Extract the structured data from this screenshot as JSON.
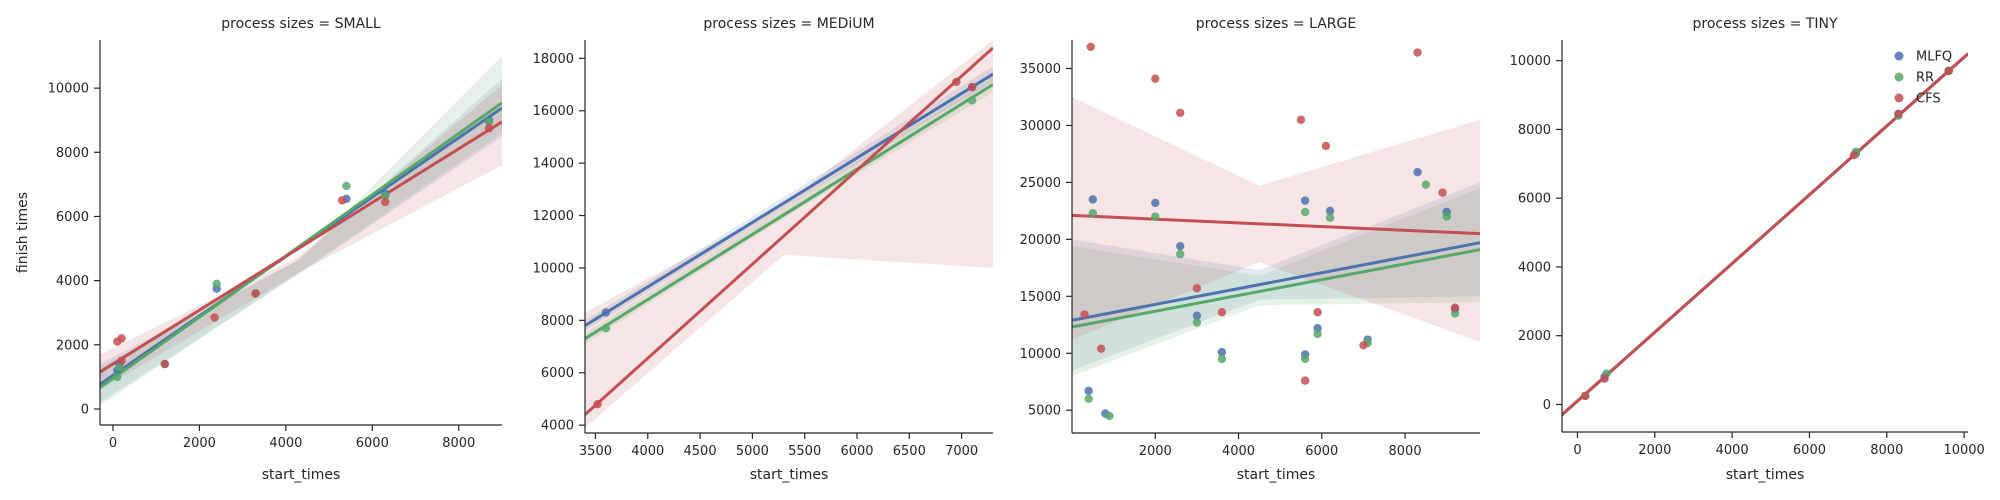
{
  "chart_data": [
    {
      "type": "scatter",
      "title": "process sizes = SMALL",
      "xlabel": "start_times",
      "ylabel": "finish times",
      "xlim": [
        -300,
        9000
      ],
      "ylim": [
        -500,
        11500
      ],
      "xticks": [
        0,
        2000,
        4000,
        6000,
        8000
      ],
      "yticks": [
        0,
        2000,
        4000,
        6000,
        8000,
        10000
      ],
      "regression": true,
      "series": [
        {
          "name": "MLFQ",
          "color": "#4c72b0",
          "points": [
            [
              100,
              1200
            ],
            [
              150,
              1400
            ],
            [
              1200,
              1400
            ],
            [
              2400,
              3750
            ],
            [
              3300,
              3600
            ],
            [
              5400,
              6550
            ],
            [
              6300,
              6700
            ],
            [
              8700,
              9000
            ]
          ],
          "fit": [
            [
              -300,
              770
            ],
            [
              9000,
              9380
            ]
          ],
          "ci": [
            [
              -300,
              200,
              1400
            ],
            [
              4300,
              4200,
              4650
            ],
            [
              9000,
              8500,
              10300
            ]
          ]
        },
        {
          "name": "RR",
          "color": "#55a868",
          "points": [
            [
              100,
              1000
            ],
            [
              150,
              1300
            ],
            [
              1200,
              1400
            ],
            [
              2400,
              3900
            ],
            [
              3300,
              3600
            ],
            [
              5400,
              6950
            ],
            [
              6300,
              6650
            ],
            [
              8700,
              8950
            ]
          ],
          "fit": [
            [
              -300,
              670
            ],
            [
              9000,
              9540
            ]
          ],
          "ci": [
            [
              -300,
              100,
              1300
            ],
            [
              4300,
              4250,
              4650
            ],
            [
              9000,
              8600,
              11000
            ]
          ]
        },
        {
          "name": "CFS",
          "color": "#c44e52",
          "points": [
            [
              100,
              2100
            ],
            [
              200,
              2200
            ],
            [
              200,
              1500
            ],
            [
              1200,
              1400
            ],
            [
              2350,
              2850
            ],
            [
              3300,
              3600
            ],
            [
              5300,
              6500
            ],
            [
              6300,
              6450
            ],
            [
              8700,
              8750
            ]
          ],
          "fit": [
            [
              -300,
              1150
            ],
            [
              9000,
              8950
            ]
          ],
          "ci": [
            [
              -300,
              600,
              1700
            ],
            [
              4300,
              4250,
              4750
            ],
            [
              9000,
              7600,
              10100
            ]
          ]
        }
      ]
    },
    {
      "type": "scatter",
      "title": "process sizes = MEDiUM",
      "xlabel": "start_times",
      "ylabel": "",
      "xlim": [
        3400,
        7300
      ],
      "ylim": [
        3700,
        18700
      ],
      "xticks": [
        3500,
        4000,
        4500,
        5000,
        5500,
        6000,
        6500,
        7000
      ],
      "yticks": [
        4000,
        6000,
        8000,
        10000,
        12000,
        14000,
        16000,
        18000
      ],
      "regression": true,
      "series": [
        {
          "name": "MLFQ",
          "color": "#4c72b0",
          "points": [
            [
              3600,
              8300
            ],
            [
              7100,
              16900
            ]
          ],
          "fit": [
            [
              3400,
              7800
            ],
            [
              7300,
              17400
            ]
          ],
          "ci": [
            [
              3400,
              7600,
              8000
            ],
            [
              5300,
              12300,
              12700
            ],
            [
              7300,
              17100,
              17700
            ]
          ]
        },
        {
          "name": "RR",
          "color": "#55a868",
          "points": [
            [
              3600,
              7700
            ],
            [
              7100,
              16400
            ]
          ],
          "fit": [
            [
              3400,
              7300
            ],
            [
              7300,
              17000
            ]
          ],
          "ci": [
            [
              3400,
              7100,
              7500
            ],
            [
              5300,
              11900,
              12300
            ],
            [
              7300,
              16700,
              17300
            ]
          ]
        },
        {
          "name": "CFS",
          "color": "#c44e52",
          "points": [
            [
              3520,
              4800
            ],
            [
              6950,
              17100
            ],
            [
              7100,
              16900
            ]
          ],
          "fit": [
            [
              3400,
              4400
            ],
            [
              7300,
              18400
            ]
          ],
          "ci": [
            [
              3400,
              3900,
              8300
            ],
            [
              5300,
              10500,
              12400
            ],
            [
              7300,
              10000,
              18700
            ]
          ]
        }
      ]
    },
    {
      "type": "scatter",
      "title": "process sizes = LARGE",
      "xlabel": "start_times",
      "ylabel": "",
      "xlim": [
        0,
        9800
      ],
      "ylim": [
        3000,
        37500
      ],
      "xticks": [
        2000,
        4000,
        6000,
        8000
      ],
      "yticks": [
        5000,
        10000,
        15000,
        20000,
        25000,
        30000,
        35000
      ],
      "regression": true,
      "series": [
        {
          "name": "MLFQ",
          "color": "#4c72b0",
          "points": [
            [
              400,
              6700
            ],
            [
              500,
              23500
            ],
            [
              800,
              4700
            ],
            [
              2000,
              23200
            ],
            [
              2600,
              19400
            ],
            [
              3000,
              13300
            ],
            [
              3600,
              10100
            ],
            [
              5600,
              23400
            ],
            [
              5600,
              9900
            ],
            [
              5900,
              12200
            ],
            [
              6200,
              22500
            ],
            [
              7100,
              11200
            ],
            [
              8300,
              25900
            ],
            [
              9000,
              22400
            ],
            [
              9200,
              13900
            ]
          ],
          "fit": [
            [
              0,
              12900
            ],
            [
              9800,
              19700
            ]
          ],
          "ci": [
            [
              0,
              8500,
              20000
            ],
            [
              4500,
              14700,
              17300
            ],
            [
              9800,
              15000,
              25000
            ]
          ]
        },
        {
          "name": "RR",
          "color": "#55a868",
          "points": [
            [
              400,
              6000
            ],
            [
              500,
              22300
            ],
            [
              900,
              4500
            ],
            [
              2000,
              22000
            ],
            [
              2600,
              18700
            ],
            [
              3000,
              12700
            ],
            [
              3600,
              9500
            ],
            [
              5600,
              22400
            ],
            [
              5600,
              9500
            ],
            [
              5900,
              11700
            ],
            [
              6200,
              21900
            ],
            [
              7100,
              10900
            ],
            [
              8500,
              24800
            ],
            [
              9000,
              22000
            ],
            [
              9200,
              13500
            ]
          ],
          "fit": [
            [
              0,
              12300
            ],
            [
              9800,
              19100
            ]
          ],
          "ci": [
            [
              0,
              8000,
              19400
            ],
            [
              4500,
              14200,
              16800
            ],
            [
              9800,
              14500,
              24500
            ]
          ]
        },
        {
          "name": "CFS",
          "color": "#c44e52",
          "points": [
            [
              300,
              13400
            ],
            [
              450,
              36900
            ],
            [
              700,
              10400
            ],
            [
              2000,
              34100
            ],
            [
              2600,
              31100
            ],
            [
              3000,
              15700
            ],
            [
              3600,
              13600
            ],
            [
              5500,
              30500
            ],
            [
              5600,
              7600
            ],
            [
              5900,
              13600
            ],
            [
              6100,
              28200
            ],
            [
              7000,
              10700
            ],
            [
              8300,
              36400
            ],
            [
              8900,
              24100
            ],
            [
              9200,
              14000
            ]
          ],
          "fit": [
            [
              0,
              22100
            ],
            [
              9800,
              20500
            ]
          ],
          "ci": [
            [
              0,
              11200,
              32500
            ],
            [
              4500,
              18000,
              24700
            ],
            [
              9800,
              11000,
              30500
            ]
          ]
        }
      ]
    },
    {
      "type": "scatter",
      "title": "process sizes = TINY",
      "xlabel": "start_times",
      "ylabel": "",
      "xlim": [
        -400,
        10100
      ],
      "ylim": [
        -800,
        10600
      ],
      "xticks": [
        0,
        2000,
        4000,
        6000,
        8000,
        10000
      ],
      "yticks": [
        0,
        2000,
        4000,
        6000,
        8000,
        10000
      ],
      "regression": true,
      "legend": {
        "position": "top-right",
        "entries": [
          "MLFQ",
          "RR",
          "CFS"
        ]
      },
      "series": [
        {
          "name": "MLFQ",
          "color": "#4c72b0",
          "points": [
            [
              200,
              250
            ],
            [
              700,
              800
            ],
            [
              7200,
              7300
            ],
            [
              8300,
              8450
            ],
            [
              9600,
              9700
            ]
          ],
          "fit": [
            [
              -400,
              -300
            ],
            [
              10100,
              10200
            ]
          ],
          "ci": [
            [
              -400,
              -360,
              -240
            ],
            [
              5000,
              5070,
              5130
            ],
            [
              10100,
              10140,
              10260
            ]
          ]
        },
        {
          "name": "RR",
          "color": "#55a868",
          "points": [
            [
              200,
              250
            ],
            [
              750,
              900
            ],
            [
              7200,
              7350
            ],
            [
              8300,
              8400
            ],
            [
              9600,
              9700
            ]
          ],
          "fit": [
            [
              -400,
              -300
            ],
            [
              10100,
              10200
            ]
          ],
          "ci": [
            [
              -400,
              -360,
              -240
            ],
            [
              5000,
              5070,
              5130
            ],
            [
              10100,
              10140,
              10260
            ]
          ]
        },
        {
          "name": "CFS",
          "color": "#c44e52",
          "points": [
            [
              200,
              250
            ],
            [
              700,
              750
            ],
            [
              7150,
              7250
            ],
            [
              8300,
              8450
            ],
            [
              9600,
              9700
            ]
          ],
          "fit": [
            [
              -400,
              -300
            ],
            [
              10100,
              10200
            ]
          ],
          "ci": [
            [
              -400,
              -360,
              -240
            ],
            [
              5000,
              5070,
              5130
            ],
            [
              10100,
              10140,
              10260
            ]
          ]
        }
      ]
    }
  ]
}
